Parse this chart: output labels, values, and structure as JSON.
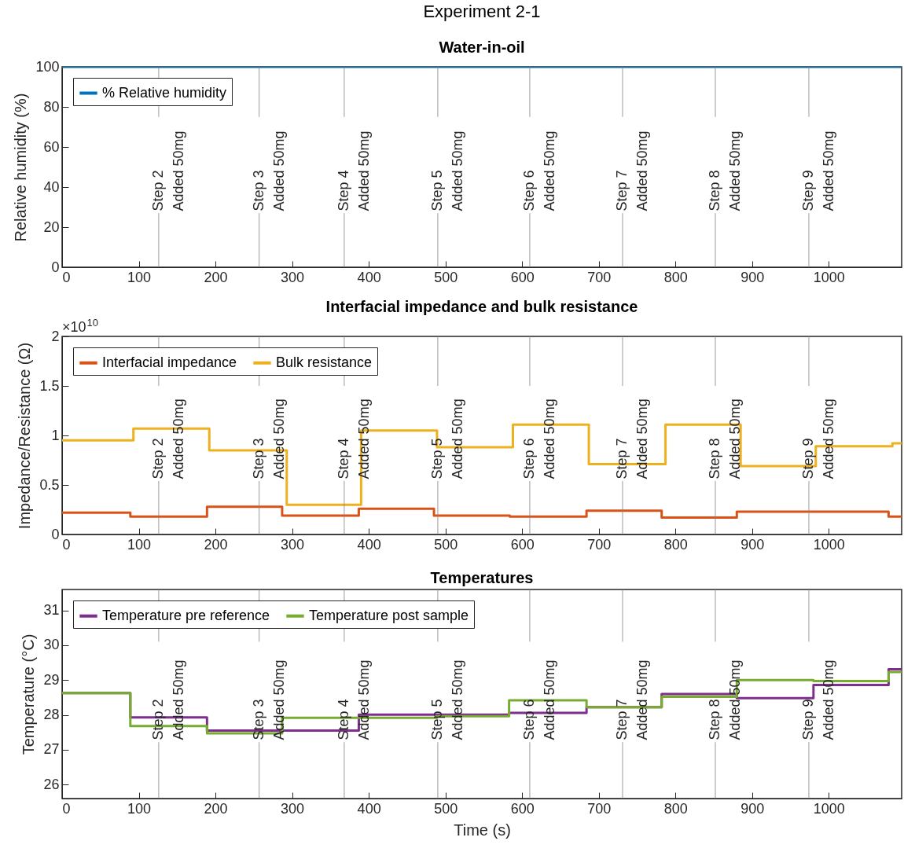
{
  "chart_data": [
    {
      "type": "step",
      "title": "Experiment 2-1",
      "subtitle": "Water-in-oil",
      "ylabel": "Relative humidity (%)",
      "xlim": [
        0,
        1095
      ],
      "xticks": [
        0,
        100,
        200,
        300,
        400,
        500,
        600,
        700,
        800,
        900,
        1000
      ],
      "ylim": [
        0,
        100
      ],
      "yticks": [
        0,
        20,
        40,
        60,
        80,
        100
      ],
      "legend": "top left",
      "series": [
        {
          "name": "% Relative humidity",
          "color": "#0072bd",
          "x": [
            0,
            1095
          ],
          "values": [
            100,
            100
          ]
        }
      ],
      "ref_lines": [
        {
          "axis": "x",
          "value": 126,
          "label": "Step 2\nAdded 50mg"
        },
        {
          "axis": "x",
          "value": 257,
          "label": "Step 3\nAdded 50mg"
        },
        {
          "axis": "x",
          "value": 368,
          "label": "Step 4\nAdded 50mg"
        },
        {
          "axis": "x",
          "value": 490,
          "label": "Step 5\nAdded 50mg"
        },
        {
          "axis": "x",
          "value": 610,
          "label": "Step 6\nAdded 50mg"
        },
        {
          "axis": "x",
          "value": 731,
          "label": "Step 7\nAdded 50mg"
        },
        {
          "axis": "x",
          "value": 852,
          "label": "Step 8\nAdded 50mg"
        },
        {
          "axis": "x",
          "value": 974,
          "label": "Step 9\nAdded 50mg"
        }
      ]
    },
    {
      "type": "step",
      "title": "Interfacial impedance and bulk resistance",
      "ylabel": "Impedance/Resistance (Ω)",
      "annotations": [
        "×10$^{10}$"
      ],
      "xlim": [
        0,
        1095
      ],
      "xticks": [
        0,
        100,
        200,
        300,
        400,
        500,
        600,
        700,
        800,
        900,
        1000
      ],
      "ylim": [
        0,
        2
      ],
      "yticks": [
        0,
        0.5,
        1,
        1.5,
        2
      ],
      "legend": "top left",
      "series": [
        {
          "name": "Interfacial impedance",
          "color": "#d95319",
          "x": [
            0,
            89,
            189,
            287,
            387,
            485,
            584,
            684,
            782,
            880,
            1078,
            1095
          ],
          "values": [
            0.22,
            0.18,
            0.28,
            0.19,
            0.26,
            0.19,
            0.18,
            0.24,
            0.17,
            0.23,
            0.18,
            0.18
          ]
        },
        {
          "name": "Bulk resistance",
          "color": "#edb120",
          "x": [
            0,
            93,
            192,
            293,
            390,
            489,
            588,
            687,
            787,
            885,
            983,
            1083,
            1095
          ],
          "values": [
            0.95,
            1.07,
            0.85,
            0.3,
            1.05,
            0.88,
            1.11,
            0.71,
            1.11,
            0.69,
            0.89,
            0.92,
            0.92
          ]
        }
      ],
      "ref_lines": [
        {
          "axis": "x",
          "value": 126,
          "label": "Step 2\nAdded 50mg"
        },
        {
          "axis": "x",
          "value": 257,
          "label": "Step 3\nAdded 50mg"
        },
        {
          "axis": "x",
          "value": 368,
          "label": "Step 4\nAdded 50mg"
        },
        {
          "axis": "x",
          "value": 490,
          "label": "Step 5\nAdded 50mg"
        },
        {
          "axis": "x",
          "value": 610,
          "label": "Step 6\nAdded 50mg"
        },
        {
          "axis": "x",
          "value": 731,
          "label": "Step 7\nAdded 50mg"
        },
        {
          "axis": "x",
          "value": 852,
          "label": "Step 8\nAdded 50mg"
        },
        {
          "axis": "x",
          "value": 974,
          "label": "Step 9\nAdded 50mg"
        }
      ]
    },
    {
      "type": "step",
      "title": "Temperatures",
      "xlabel": "Time (s)",
      "ylabel": "Temperature (°C)",
      "xlim": [
        0,
        1095
      ],
      "xticks": [
        0,
        100,
        200,
        300,
        400,
        500,
        600,
        700,
        800,
        900,
        1000
      ],
      "ylim": [
        25.6,
        31.6
      ],
      "yticks": [
        26,
        27,
        28,
        29,
        30,
        31
      ],
      "legend": "top left",
      "series": [
        {
          "name": "Temperature pre reference",
          "color": "#7e2f8e",
          "x": [
            0,
            89,
            189,
            387,
            583,
            684,
            782,
            880,
            980,
            1078,
            1095
          ],
          "values": [
            28.63,
            27.93,
            27.55,
            28.01,
            28.06,
            28.22,
            28.6,
            28.48,
            28.86,
            29.31,
            29.31
          ]
        },
        {
          "name": "Temperature post sample",
          "color": "#77ac30",
          "x": [
            0,
            89,
            189,
            287,
            489,
            583,
            684,
            782,
            880,
            980,
            1078,
            1095
          ],
          "values": [
            28.63,
            27.68,
            27.47,
            27.92,
            27.96,
            28.42,
            28.22,
            28.52,
            29.0,
            28.97,
            29.23,
            29.23
          ]
        }
      ],
      "ref_lines": [
        {
          "axis": "x",
          "value": 126,
          "label": "Step 2\nAdded 50mg"
        },
        {
          "axis": "x",
          "value": 257,
          "label": "Step 3\nAdded 50mg"
        },
        {
          "axis": "x",
          "value": 368,
          "label": "Step 4\nAdded 50mg"
        },
        {
          "axis": "x",
          "value": 490,
          "label": "Step 5\nAdded 50mg"
        },
        {
          "axis": "x",
          "value": 610,
          "label": "Step 6\nAdded 50mg"
        },
        {
          "axis": "x",
          "value": 731,
          "label": "Step 7\nAdded 50mg"
        },
        {
          "axis": "x",
          "value": 852,
          "label": "Step 8\nAdded 50mg"
        },
        {
          "axis": "x",
          "value": 974,
          "label": "Step 9\nAdded 50mg"
        }
      ]
    }
  ]
}
